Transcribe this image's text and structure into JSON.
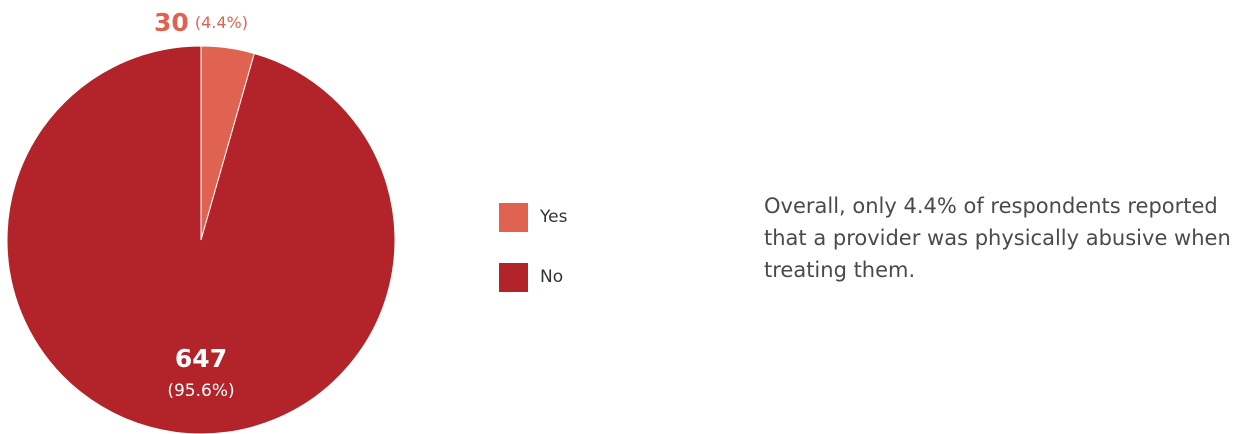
{
  "chart_data": {
    "type": "pie",
    "slices": [
      {
        "label": "Yes",
        "value": 30,
        "percent_label": "(4.4%)",
        "color": "#e06352"
      },
      {
        "label": "No",
        "value": 647,
        "percent_label": "(95.6%)",
        "color": "#b22429"
      }
    ],
    "legend": {
      "placement": "right",
      "entries": [
        "Yes",
        "No"
      ]
    }
  },
  "note": {
    "text": "Overall, only 4.4% of respondents reported that a provider was physically abusive when treating them."
  }
}
